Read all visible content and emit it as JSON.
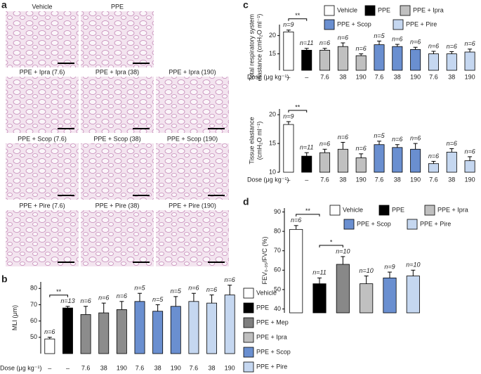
{
  "panel_labels": [
    "a",
    "b",
    "c",
    "d"
  ],
  "micrographs": [
    "Vehicle",
    "PPE",
    "PPE + Ipra (7.6)",
    "PPE + Ipra (38)",
    "PPE + Ipra (190)",
    "PPE + Scop (7.6)",
    "PPE + Scop (38)",
    "PPE + Scop (190)",
    "PPE + Pire (7.6)",
    "PPE + Pire (38)",
    "PPE + Pire (190)"
  ],
  "chart_data": [
    {
      "type": "bar",
      "ylabel": [
        "MLI (μm)"
      ],
      "dose_label": "Dose (μg kg⁻¹)",
      "categories": [
        "–",
        "–",
        "7.6",
        "38",
        "190",
        "7.6",
        "38",
        "190",
        "7.6",
        "38",
        "190"
      ],
      "values": [
        49,
        68,
        64,
        65,
        67,
        72,
        66,
        69,
        72,
        71,
        76
      ],
      "errors": [
        1,
        1,
        5,
        6,
        5,
        5,
        4,
        6,
        5,
        5,
        6
      ],
      "n_labels": [
        "n=6",
        "n=13",
        "n=6",
        "n=6",
        "n=6",
        "n=5",
        "n=5",
        "n=5",
        "n=6",
        "n=6",
        "n=6"
      ],
      "colors": [
        "#ffffff",
        "#000000",
        "#8c8c8c",
        "#8c8c8c",
        "#8c8c8c",
        "#6a8fd0",
        "#6a8fd0",
        "#6a8fd0",
        "#c5d7f0",
        "#c5d7f0",
        "#c5d7f0"
      ],
      "legend": [
        {
          "name": "Vehicle",
          "color": "#ffffff"
        },
        {
          "name": "PPE",
          "color": "#000000"
        },
        {
          "name": "PPE + Mep",
          "color": "#7f7f7f"
        },
        {
          "name": "PPE + Ipra",
          "color": "#bfbfbf"
        },
        {
          "name": "PPE + Scop",
          "color": "#6a8fd0"
        },
        {
          "name": "PPE + Pire",
          "color": "#c5d7f0"
        }
      ],
      "annotations": [
        "**"
      ],
      "ylim": [
        40,
        84
      ],
      "yticks": [
        50,
        60,
        70,
        80
      ]
    },
    {
      "type": "bar",
      "ylabel": [
        "Total respiratory system",
        "elastance (cmH₂O ml⁻¹)"
      ],
      "dose_label": "Dose (μg kg⁻¹)",
      "categories": [
        "–",
        "–",
        "7.6",
        "38",
        "190",
        "7.6",
        "38",
        "190",
        "7.6",
        "38",
        "190"
      ],
      "values": [
        21,
        16,
        16,
        17,
        14.5,
        17.5,
        17,
        16.2,
        15,
        15,
        15.5
      ],
      "errors": [
        0.5,
        0.5,
        0.5,
        1,
        0.5,
        1,
        0.6,
        0.6,
        0.7,
        0.6,
        0.8
      ],
      "n_labels": [
        "n=9",
        "n=11",
        "n=6",
        "n=6",
        "n=6",
        "n=5",
        "n=6",
        "n=6",
        "n=6",
        "n=6",
        "n=6"
      ],
      "colors": [
        "#ffffff",
        "#000000",
        "#c0c0c0",
        "#c0c0c0",
        "#c0c0c0",
        "#6a8fd0",
        "#6a8fd0",
        "#6a8fd0",
        "#c5d7f0",
        "#c5d7f0",
        "#c5d7f0"
      ],
      "legend": [
        {
          "name": "Vehicle",
          "color": "#ffffff"
        },
        {
          "name": "PPE",
          "color": "#000000"
        },
        {
          "name": "PPE + Ipra",
          "color": "#c0c0c0"
        },
        {
          "name": "PPE + Scop",
          "color": "#6a8fd0"
        },
        {
          "name": "PPE + Pire",
          "color": "#c5d7f0"
        }
      ],
      "annotations": [
        "**"
      ],
      "ylim": [
        10.5,
        23
      ],
      "yticks": [
        15,
        20
      ]
    },
    {
      "type": "bar",
      "ylabel": [
        "Tissue elastance",
        "(cmH₂O ml⁻¹)"
      ],
      "dose_label": "Dose (μg kg⁻¹)",
      "categories": [
        "–",
        "–",
        "7.6",
        "38",
        "190",
        "7.6",
        "38",
        "190",
        "7.6",
        "38",
        "190"
      ],
      "values": [
        18.3,
        12.8,
        13.4,
        14,
        12.5,
        14.8,
        14.3,
        14,
        11.5,
        13.5,
        12
      ],
      "errors": [
        0.5,
        0.6,
        0.6,
        1.2,
        0.7,
        0.6,
        0.5,
        1,
        0.4,
        0.6,
        0.7
      ],
      "n_labels": [
        "n=9",
        "n=11",
        "n=6",
        "n=6",
        "n=6",
        "n=5",
        "n=6",
        "n=6",
        "n=6",
        "n=6",
        "n=6"
      ],
      "colors": [
        "#ffffff",
        "#000000",
        "#c0c0c0",
        "#c0c0c0",
        "#c0c0c0",
        "#6a8fd0",
        "#6a8fd0",
        "#6a8fd0",
        "#c5d7f0",
        "#c5d7f0",
        "#c5d7f0"
      ],
      "annotations": [
        "**"
      ],
      "ylim": [
        10,
        21
      ],
      "yticks": [
        10,
        15,
        20
      ]
    },
    {
      "type": "bar",
      "ylabel": [
        "FEV₀.₀₅/FVC (%)"
      ],
      "categories": [
        null,
        null,
        null,
        null,
        null,
        null
      ],
      "values": [
        81,
        53,
        63,
        53,
        56,
        57
      ],
      "errors": [
        2,
        3,
        4,
        4,
        3,
        3
      ],
      "n_labels": [
        "n=6",
        "n=11",
        "n=10",
        "n=10",
        "n=9",
        "n=10"
      ],
      "colors": [
        "#ffffff",
        "#000000",
        "#888888",
        "#c0c0c0",
        "#6a8fd0",
        "#c5d7f0"
      ],
      "legend": [
        {
          "name": "Vehicle",
          "color": "#ffffff"
        },
        {
          "name": "PPE",
          "color": "#000000"
        },
        {
          "name": "PPE + Ipra",
          "color": "#c0c0c0"
        },
        {
          "name": "PPE + Scop",
          "color": "#6a8fd0"
        },
        {
          "name": "PPE + Pire",
          "color": "#c5d7f0"
        }
      ],
      "annotations": [
        "**",
        "*"
      ],
      "ylim": [
        38,
        92
      ],
      "yticks": [
        40,
        50,
        60,
        70,
        80,
        90
      ]
    }
  ]
}
